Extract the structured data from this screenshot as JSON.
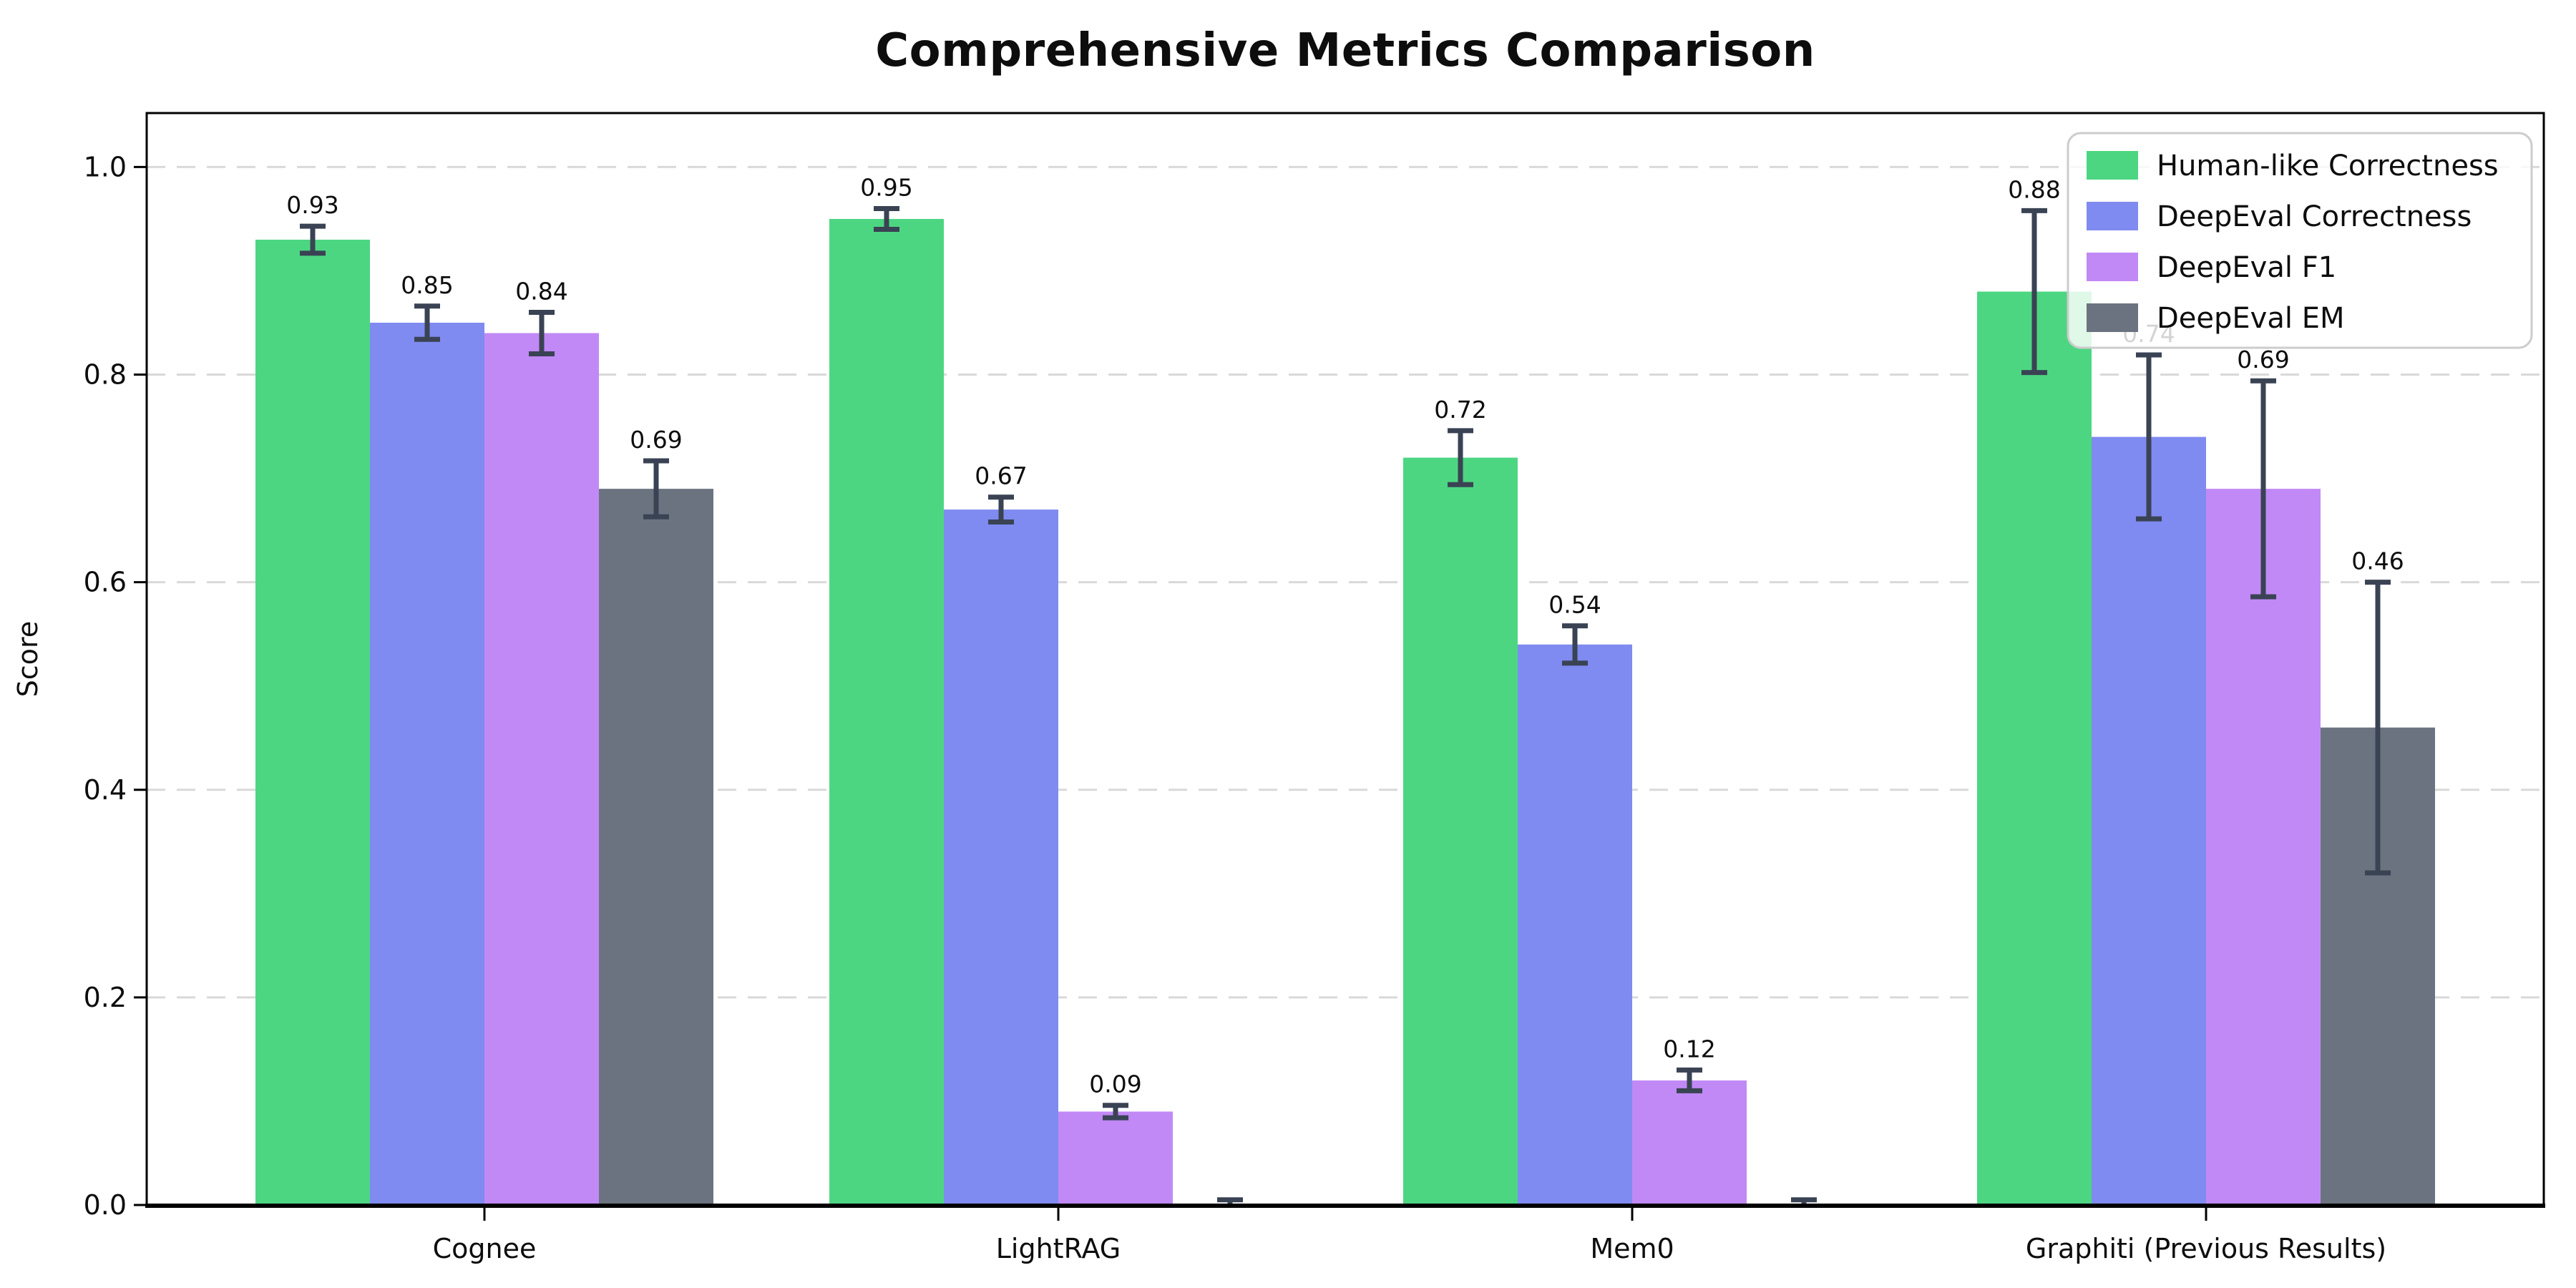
{
  "chart_data": {
    "type": "bar",
    "title": "Comprehensive Metrics Comparison",
    "ylabel": "Score",
    "xlabel": "",
    "categories": [
      "Cognee",
      "LightRAG",
      "Mem0",
      "Graphiti (Previous Results)"
    ],
    "series": [
      {
        "name": "Human-like Correctness",
        "color": "#4dd681",
        "values": [
          0.93,
          0.95,
          0.72,
          0.88
        ],
        "errors": [
          0.013,
          0.01,
          0.026,
          0.078
        ]
      },
      {
        "name": "DeepEval Correctness",
        "color": "#7f8bf0",
        "values": [
          0.85,
          0.67,
          0.54,
          0.74
        ],
        "errors": [
          0.016,
          0.012,
          0.018,
          0.079
        ]
      },
      {
        "name": "DeepEval F1",
        "color": "#c189f5",
        "values": [
          0.84,
          0.09,
          0.12,
          0.69
        ],
        "errors": [
          0.02,
          0.006,
          0.01,
          0.104
        ]
      },
      {
        "name": "DeepEval EM",
        "color": "#6c7380",
        "values": [
          0.69,
          0.0,
          0.0,
          0.46
        ],
        "errors": [
          0.027,
          0.005,
          0.005,
          0.14
        ]
      }
    ],
    "ylim": [
      0,
      1.052
    ],
    "yticks": [
      0.0,
      0.2,
      0.4,
      0.6,
      0.8,
      1.0
    ],
    "ytick_labels": [
      "0.0",
      "0.2",
      "0.4",
      "0.6",
      "0.8",
      "1.0"
    ],
    "grid": {
      "axis": "y",
      "style": "dashed",
      "color": "#d9d9d9"
    },
    "legend": {
      "position": "upper right"
    },
    "bar_value_labels": true,
    "value_label_format": "0.00",
    "error_bar_color": "#3a4354",
    "axis_color": "#000000",
    "background": "#ffffff"
  }
}
